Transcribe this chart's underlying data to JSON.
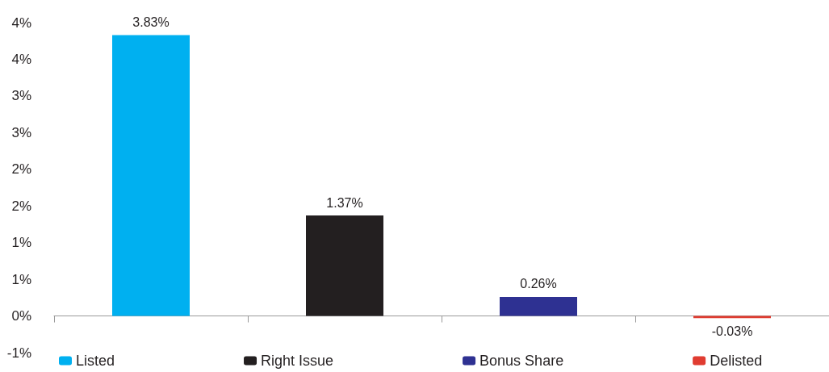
{
  "chart_data": {
    "type": "bar",
    "categories": [
      null,
      null,
      null,
      null
    ],
    "series": [
      {
        "name": "Listed",
        "color": "#00b0f0",
        "values": [
          3.83,
          null,
          null,
          null
        ],
        "value_labels": [
          "3.83%",
          null,
          null,
          null
        ]
      },
      {
        "name": "Right Issue",
        "color": "#231f20",
        "values": [
          null,
          1.37,
          null,
          null
        ],
        "value_labels": [
          null,
          "1.37%",
          null,
          null
        ]
      },
      {
        "name": "Bonus Share",
        "color": "#2e3192",
        "values": [
          null,
          null,
          0.26,
          null
        ],
        "value_labels": [
          null,
          null,
          "0.26%",
          null
        ]
      },
      {
        "name": "Delisted",
        "color": "#e03c31",
        "values": [
          null,
          null,
          null,
          -0.03
        ],
        "value_labels": [
          null,
          null,
          null,
          "-0.03%"
        ]
      }
    ],
    "ylim": [
      -0.5,
      4
    ],
    "yticks": [
      {
        "value": -0.5,
        "label": "-1%"
      },
      {
        "value": 0,
        "label": "0%"
      },
      {
        "value": 0.5,
        "label": "1%"
      },
      {
        "value": 1,
        "label": "1%"
      },
      {
        "value": 1.5,
        "label": "2%"
      },
      {
        "value": 2,
        "label": "2%"
      },
      {
        "value": 2.5,
        "label": "3%"
      },
      {
        "value": 3,
        "label": "3%"
      },
      {
        "value": 3.5,
        "label": "4%"
      },
      {
        "value": 4,
        "label": "4%"
      }
    ],
    "legend": "bottom"
  }
}
